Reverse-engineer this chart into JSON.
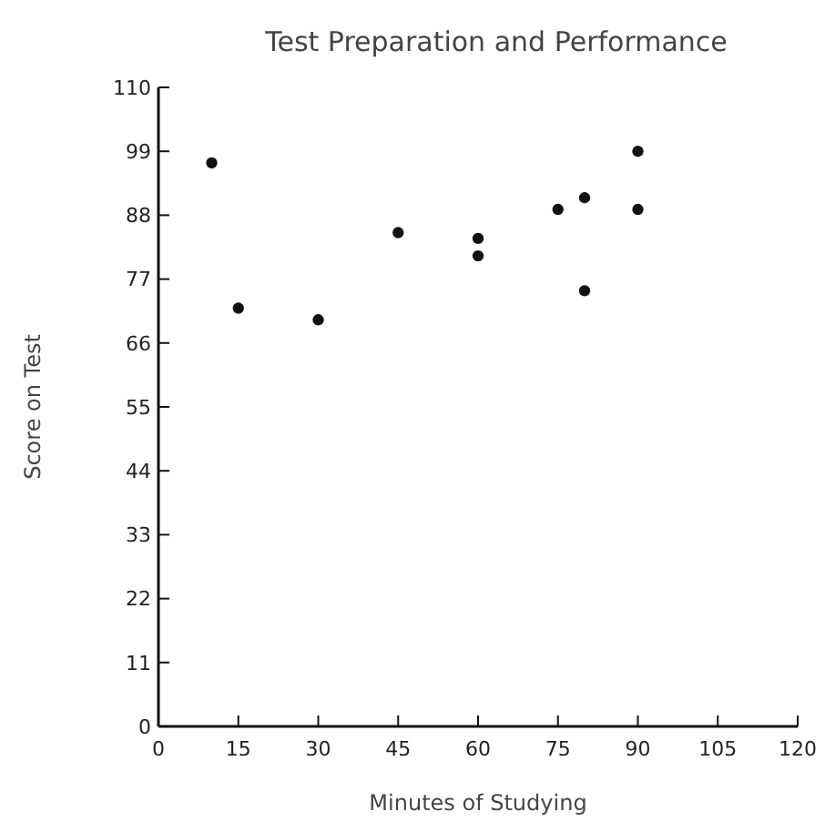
{
  "chart_data": {
    "type": "scatter",
    "title": "Test Preparation and Performance",
    "xlabel": "Minutes of Studying",
    "ylabel": "Score on Test",
    "x": [
      10,
      15,
      30,
      45,
      60,
      60,
      75,
      80,
      80,
      90,
      90
    ],
    "values": [
      97,
      72,
      70,
      85,
      84,
      81,
      89,
      91,
      75,
      99,
      89
    ],
    "color": "#111111",
    "marker": "circle",
    "xlim": [
      0,
      120
    ],
    "xticks": [
      0,
      15,
      30,
      45,
      60,
      75,
      90,
      105,
      120
    ],
    "ylim": [
      0,
      110
    ],
    "yticks": [
      0,
      11,
      22,
      33,
      44,
      55,
      66,
      77,
      88,
      99,
      110
    ]
  }
}
